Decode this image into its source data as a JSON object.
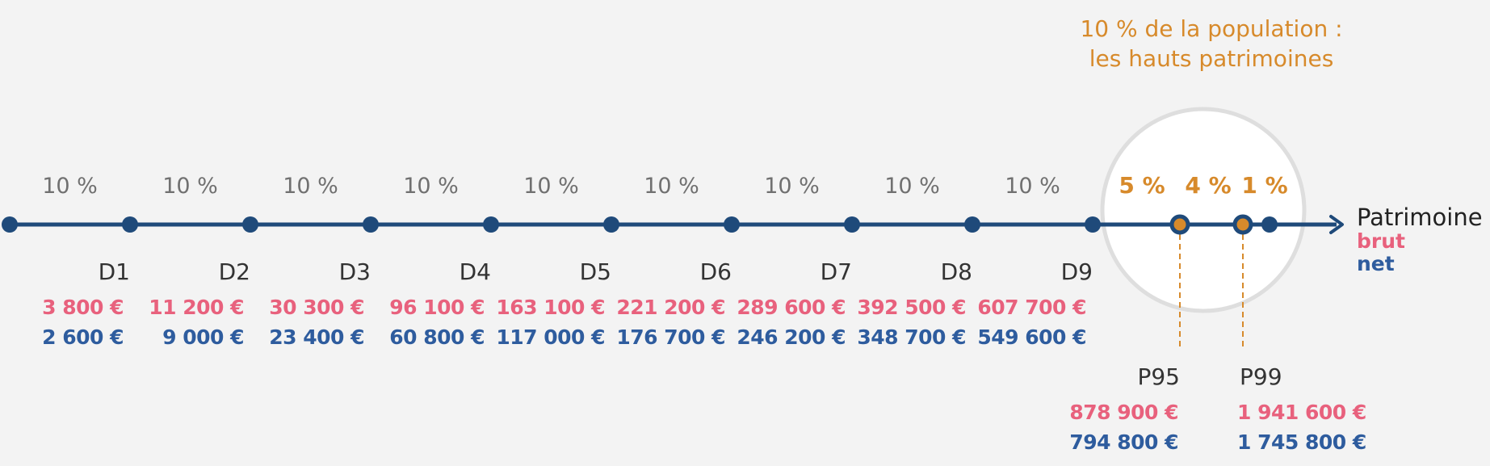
{
  "highlight": {
    "title_line1": "10 % de la population :",
    "title_line2": "les hauts patrimoines"
  },
  "deciles": [
    {
      "share": "10 %",
      "label": "D1",
      "brut": "3 800 €",
      "net": "2 600 €"
    },
    {
      "share": "10 %",
      "label": "D2",
      "brut": "11 200 €",
      "net": "9 000 €"
    },
    {
      "share": "10 %",
      "label": "D3",
      "brut": "30 300 €",
      "net": "23 400 €"
    },
    {
      "share": "10 %",
      "label": "D4",
      "brut": "96 100 €",
      "net": "60 800 €"
    },
    {
      "share": "10 %",
      "label": "D5",
      "brut": "163 100 €",
      "net": "117 000 €"
    },
    {
      "share": "10 %",
      "label": "D6",
      "brut": "221 200 €",
      "net": "176 700 €"
    },
    {
      "share": "10 %",
      "label": "D7",
      "brut": "289 600 €",
      "net": "246 200 €"
    },
    {
      "share": "10 %",
      "label": "D8",
      "brut": "392 500 €",
      "net": "348 700 €"
    },
    {
      "share": "10 %",
      "label": "D9",
      "brut": "607 700 €",
      "net": "549 600 €"
    }
  ],
  "top_shares": [
    "5 %",
    "4 %",
    "1 %"
  ],
  "percentiles": [
    {
      "label": "P95",
      "brut": "878 900 €",
      "net": "794 800 €"
    },
    {
      "label": "P99",
      "brut": "1 941 600 €",
      "net": "1 745 800 €"
    }
  ],
  "legend": {
    "axis_label": "Patrimoine",
    "brut_label": "brut",
    "net_label": "net"
  },
  "colors": {
    "axis": "#1f4a7a",
    "brut": "#e8617d",
    "net": "#2e5c9e",
    "highlight": "#d78a2b",
    "share_text": "#707070",
    "circle_fill": "#ffffff",
    "circle_stroke": "#dedede"
  }
}
